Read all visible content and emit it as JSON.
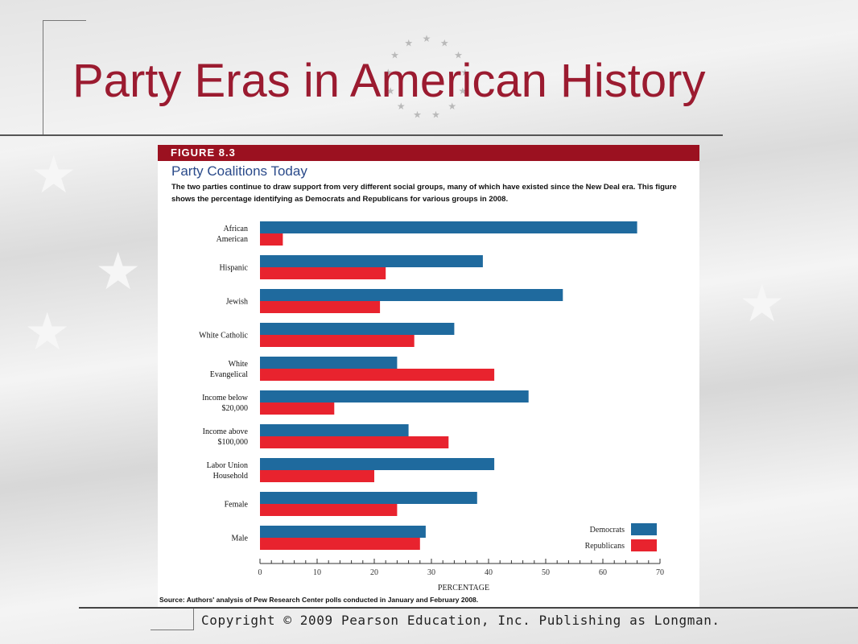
{
  "slide": {
    "title": "Party Eras in American History",
    "copyright": "Copyright © 2009 Pearson Education, Inc. Publishing as Longman."
  },
  "figure": {
    "label": "FIGURE 8.3",
    "title": "Party Coalitions Today",
    "caption": "The two parties continue to draw support from very different social groups, many of which have existed since the New Deal era. This figure shows the percentage identifying as Democrats and Republicans for various groups in 2008.",
    "source": "Source: Authors' analysis of Pew Research Center polls conducted in January and February 2008."
  },
  "colors": {
    "title": "#9b1b30",
    "figure_bar": "#9b1120",
    "democrats": "#1f6a9e",
    "republicans": "#e8232e"
  },
  "chart_data": {
    "type": "bar",
    "orientation": "horizontal",
    "categories": [
      [
        "African",
        "American"
      ],
      [
        "Hispanic"
      ],
      [
        "Jewish"
      ],
      [
        "White Catholic"
      ],
      [
        "White",
        "Evangelical"
      ],
      [
        "Income below",
        "$20,000"
      ],
      [
        "Income above",
        "$100,000"
      ],
      [
        "Labor Union",
        "Household"
      ],
      [
        "Female"
      ],
      [
        "Male"
      ]
    ],
    "series": [
      {
        "name": "Democrats",
        "color": "#1f6a9e",
        "values": [
          66,
          39,
          53,
          34,
          24,
          47,
          26,
          41,
          38,
          29
        ]
      },
      {
        "name": "Republicans",
        "color": "#e8232e",
        "values": [
          4,
          22,
          21,
          27,
          41,
          13,
          33,
          20,
          24,
          28
        ]
      }
    ],
    "xlabel": "PERCENTAGE",
    "xlim": [
      0,
      70
    ],
    "xticks": [
      0,
      10,
      20,
      30,
      40,
      50,
      60,
      70
    ],
    "grid": false,
    "legend_position": "bottom-right"
  }
}
